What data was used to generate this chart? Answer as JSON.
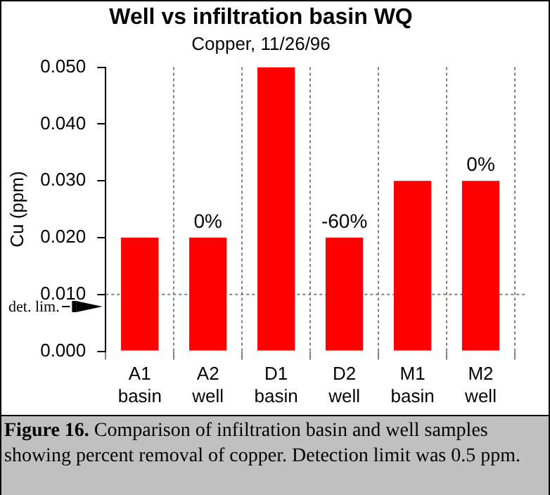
{
  "chart_data": {
    "type": "bar",
    "title": "Well vs infiltration basin WQ",
    "subtitle": "Copper, 11/26/96",
    "ylabel": "Cu (ppm)",
    "categories": [
      "A1 basin",
      "A2 well",
      "D1 basin",
      "D2 well",
      "M1 basin",
      "M2 well"
    ],
    "values": [
      0.02,
      0.02,
      0.05,
      0.02,
      0.03,
      0.03
    ],
    "color": "#ff0000",
    "ylim": [
      0,
      0.05
    ],
    "yticks": [
      {
        "value": 0,
        "label": "0.000"
      },
      {
        "value": 0.01,
        "label": "0.010"
      },
      {
        "value": 0.02,
        "label": "0.020"
      },
      {
        "value": 0.03,
        "label": "0.030"
      },
      {
        "value": 0.04,
        "label": "0.040"
      },
      {
        "value": 0.05,
        "label": "0.050"
      }
    ],
    "ref_lines": [
      {
        "axis": "y",
        "value": 0.01,
        "label": "det. lim.",
        "color": "#808080",
        "line_style": "dotted"
      }
    ],
    "grid": "x",
    "legend": false,
    "annotations": [
      {
        "text": "0%",
        "x": "A2 well",
        "y": 0.02
      },
      {
        "text": "-60%",
        "x": "D2 well",
        "y": 0.02
      },
      {
        "text": "0%",
        "x": "M2 well",
        "y": 0.03
      },
      "Figure 16.",
      "Comparison of infiltration basin and well samples showing percent removal of copper.  Detection limit was 0.5 ppm."
    ]
  }
}
